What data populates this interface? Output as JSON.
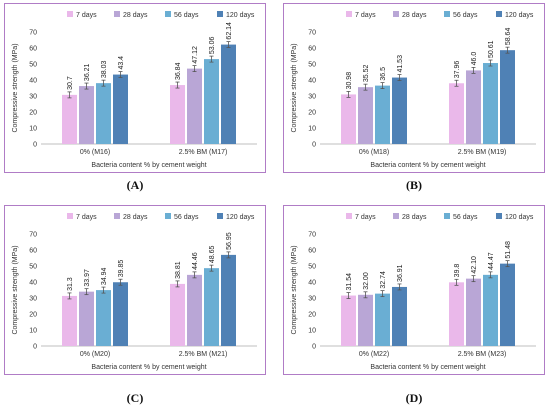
{
  "colors": {
    "border": "#b07cc6",
    "series": [
      "#eab8ea",
      "#b9a6d6",
      "#6aaed3",
      "#4f81b5"
    ]
  },
  "chart_data": [
    {
      "type": "bar",
      "panel_label": "(A)",
      "ylabel": "Compressive strength (MPa)",
      "xlabel": "Bacteria content % by cement weight",
      "categories": [
        "0% (M16)",
        "2.5% BM (M17)"
      ],
      "ylim": [
        0,
        70
      ],
      "yticks": [
        0,
        10,
        20,
        30,
        40,
        50,
        60,
        70
      ],
      "legend_position": "top",
      "series": [
        {
          "name": "7 days",
          "values": [
            30.7,
            36.84
          ],
          "labels": [
            "30.7",
            "36.84"
          ]
        },
        {
          "name": "28 days",
          "values": [
            36.21,
            47.12
          ],
          "labels": [
            "36.21",
            "47.12"
          ]
        },
        {
          "name": "56 days",
          "values": [
            38.03,
            53.06
          ],
          "labels": [
            "38.03",
            "53.06"
          ]
        },
        {
          "name": "120 days",
          "values": [
            43.4,
            62.14
          ],
          "labels": [
            "43.4",
            "62.14"
          ]
        }
      ]
    },
    {
      "type": "bar",
      "panel_label": "(B)",
      "ylabel": "Compressive strength (MPa)",
      "xlabel": "Bacteria content % by cement weight",
      "categories": [
        "0% (M18)",
        "2.5% BM (M19)"
      ],
      "ylim": [
        0,
        70
      ],
      "yticks": [
        0,
        10,
        20,
        30,
        40,
        50,
        60,
        70
      ],
      "legend_position": "top",
      "series": [
        {
          "name": "7 days",
          "values": [
            30.98,
            37.96
          ],
          "labels": [
            "30.98",
            "37.96"
          ]
        },
        {
          "name": "28 days",
          "values": [
            35.52,
            46.0
          ],
          "labels": [
            "35.52",
            "46.0"
          ]
        },
        {
          "name": "56 days",
          "values": [
            36.5,
            50.61
          ],
          "labels": [
            "36.5",
            "50.61"
          ]
        },
        {
          "name": "120 days",
          "values": [
            41.53,
            58.64
          ],
          "labels": [
            "41.53",
            "58.64"
          ]
        }
      ]
    },
    {
      "type": "bar",
      "panel_label": "(C)",
      "ylabel": "Compressive strength (MPa)",
      "xlabel": "Bacteria content % by cement weight",
      "categories": [
        "0% (M20)",
        "2.5% BM (M21)"
      ],
      "ylim": [
        0,
        70
      ],
      "yticks": [
        0,
        10,
        20,
        30,
        40,
        50,
        60,
        70
      ],
      "legend_position": "top",
      "series": [
        {
          "name": "7 days",
          "values": [
            31.3,
            38.81
          ],
          "labels": [
            "31.3",
            "38.81"
          ]
        },
        {
          "name": "28 days",
          "values": [
            33.97,
            44.46
          ],
          "labels": [
            "33.97",
            "44.46"
          ]
        },
        {
          "name": "56 days",
          "values": [
            34.94,
            48.65
          ],
          "labels": [
            "34.94",
            "48.65"
          ]
        },
        {
          "name": "120 days",
          "values": [
            39.85,
            56.95
          ],
          "labels": [
            "39.85",
            "56.95"
          ]
        }
      ]
    },
    {
      "type": "bar",
      "panel_label": "(D)",
      "ylabel": "Compressive strength (MPa)",
      "xlabel": "Bacteria content % by cement weight",
      "categories": [
        "0% (M22)",
        "2.5% BM (M23)"
      ],
      "ylim": [
        0,
        70
      ],
      "yticks": [
        0,
        10,
        20,
        30,
        40,
        50,
        60,
        70
      ],
      "legend_position": "top",
      "series": [
        {
          "name": "7 days",
          "values": [
            31.54,
            39.8
          ],
          "labels": [
            "31.54",
            "39.8"
          ]
        },
        {
          "name": "28 days",
          "values": [
            32.0,
            42.1
          ],
          "labels": [
            "32.00",
            "42.10"
          ]
        },
        {
          "name": "56 days",
          "values": [
            32.74,
            44.47
          ],
          "labels": [
            "32.74",
            "44.47"
          ]
        },
        {
          "name": "120 days",
          "values": [
            36.91,
            51.48
          ],
          "labels": [
            "36.91",
            "51.48"
          ]
        }
      ]
    }
  ]
}
